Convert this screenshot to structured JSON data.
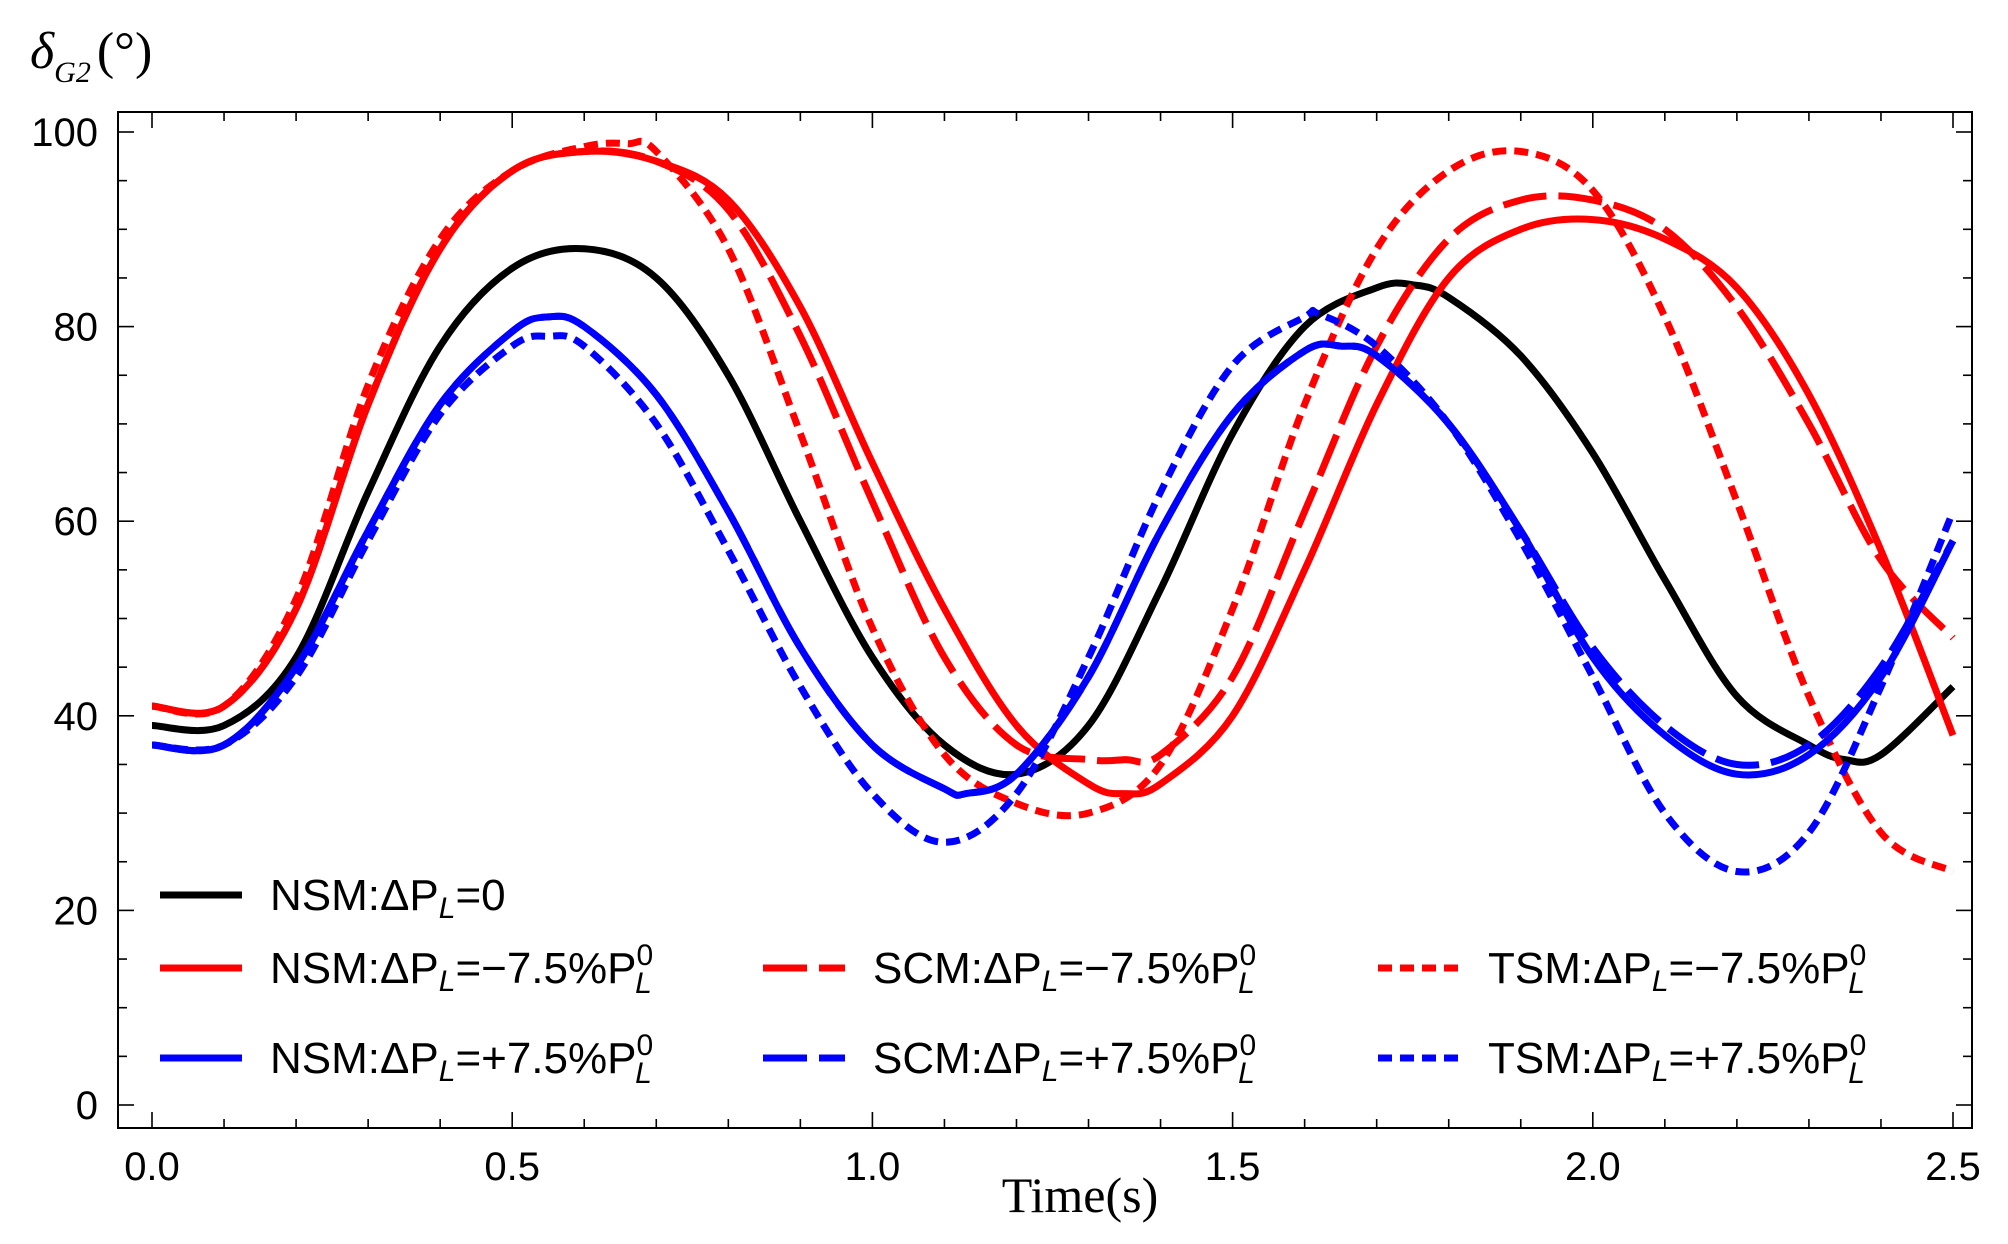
{
  "chart_data": {
    "type": "line",
    "ylabel": "δ",
    "ylabel_sub": "G2",
    "ylabel_unit": "(°)",
    "xlabel": "Time(s)",
    "xlim": [
      0.0,
      2.5
    ],
    "ylim": [
      0,
      100
    ],
    "xticks": [
      0.0,
      0.5,
      1.0,
      1.5,
      2.0,
      2.5
    ],
    "xtick_labels": [
      "0.0",
      "0.5",
      "1.0",
      "1.5",
      "2.0",
      "2.5"
    ],
    "yticks": [
      0,
      20,
      40,
      60,
      80,
      100
    ],
    "ytick_labels": [
      "0",
      "20",
      "40",
      "60",
      "80",
      "100"
    ],
    "grid": false,
    "legend_position": "bottom-left",
    "series": [
      {
        "name": "NSM:ΔP_L=0",
        "prefix": "NSM:ΔP",
        "sub": "L",
        "suffix": "=0",
        "sup": "",
        "color": "#000000",
        "style": "solid",
        "x": [
          0,
          0.1,
          0.2,
          0.3,
          0.4,
          0.5,
          0.6,
          0.7,
          0.8,
          0.9,
          1.0,
          1.1,
          1.2,
          1.3,
          1.4,
          1.5,
          1.6,
          1.7,
          1.75,
          1.8,
          1.9,
          2.0,
          2.1,
          2.2,
          2.3,
          2.35,
          2.4,
          2.5
        ],
        "y": [
          39,
          39,
          46,
          63,
          78,
          86,
          88,
          85,
          75,
          60,
          46,
          37,
          34,
          39,
          53,
          69,
          80,
          84,
          84.3,
          83,
          77,
          67,
          54,
          42,
          37,
          35.5,
          36,
          43
        ]
      },
      {
        "name": "NSM:ΔP_L=−7.5%P_L^0",
        "prefix": "NSM:ΔP",
        "sub": "L",
        "suffix": "=−7.5%P",
        "sup": "0",
        "color": "#ff0000",
        "style": "solid",
        "x": [
          0,
          0.1,
          0.2,
          0.3,
          0.4,
          0.5,
          0.6,
          0.7,
          0.8,
          0.9,
          1.0,
          1.1,
          1.2,
          1.3,
          1.35,
          1.4,
          1.5,
          1.6,
          1.7,
          1.8,
          1.9,
          2.0,
          2.1,
          2.2,
          2.3,
          2.4,
          2.5
        ],
        "y": [
          41,
          41,
          51,
          72,
          88,
          96,
          98,
          97,
          93,
          82,
          66,
          51,
          39,
          33,
          32,
          33,
          40,
          55,
          72,
          85,
          90,
          91,
          89,
          84,
          73,
          57,
          38
        ]
      },
      {
        "name": "SCM:ΔP_L=−7.5%P_L^0",
        "prefix": "SCM:ΔP",
        "sub": "L",
        "suffix": "=−7.5%P",
        "sup": "0",
        "color": "#ff0000",
        "style": "dashed",
        "x": [
          0,
          0.1,
          0.2,
          0.3,
          0.4,
          0.5,
          0.6,
          0.7,
          0.8,
          0.9,
          1.0,
          1.1,
          1.2,
          1.3,
          1.35,
          1.4,
          1.5,
          1.6,
          1.7,
          1.8,
          1.9,
          2.0,
          2.1,
          2.2,
          2.3,
          2.4,
          2.5
        ],
        "y": [
          41,
          41,
          51,
          72,
          88,
          96,
          98,
          97,
          92,
          79,
          62,
          46,
          37,
          35.5,
          35.5,
          36,
          44,
          61,
          78,
          89,
          93,
          93,
          90,
          82,
          70,
          56,
          48
        ]
      },
      {
        "name": "TSM:ΔP_L=−7.5%P_L^0",
        "prefix": "TSM:ΔP",
        "sub": "L",
        "suffix": "=−7.5%P",
        "sup": "0",
        "color": "#ff0000",
        "style": "dotted",
        "x": [
          0,
          0.1,
          0.2,
          0.3,
          0.4,
          0.5,
          0.6,
          0.66,
          0.7,
          0.8,
          0.9,
          1.0,
          1.1,
          1.2,
          1.3,
          1.4,
          1.5,
          1.6,
          1.7,
          1.8,
          1.9,
          2.0,
          2.1,
          2.2,
          2.3,
          2.4,
          2.5
        ],
        "y": [
          41,
          41,
          52,
          74,
          89,
          96,
          98.5,
          98.8,
          98,
          88,
          69,
          49,
          36,
          31,
          30,
          35,
          51,
          72,
          88,
          96,
          98,
          94,
          81,
          62,
          42,
          28,
          24
        ]
      },
      {
        "name": "NSM:ΔP_L=+7.5%P_L^0",
        "prefix": "NSM:ΔP",
        "sub": "L",
        "suffix": "=+7.5%P",
        "sup": "0",
        "color": "#0000ff",
        "style": "solid",
        "x": [
          0,
          0.1,
          0.2,
          0.3,
          0.4,
          0.5,
          0.55,
          0.6,
          0.7,
          0.8,
          0.9,
          1.0,
          1.1,
          1.13,
          1.2,
          1.3,
          1.4,
          1.5,
          1.6,
          1.65,
          1.7,
          1.8,
          1.9,
          2.0,
          2.1,
          2.2,
          2.3,
          2.4,
          2.5
        ],
        "y": [
          37,
          37,
          45,
          59,
          72,
          79.5,
          81,
          80,
          73,
          61,
          47,
          37,
          32.5,
          32,
          34,
          44,
          59,
          71,
          77.5,
          78,
          77,
          70,
          59,
          46,
          38,
          34,
          36,
          44,
          58
        ]
      },
      {
        "name": "SCM:ΔP_L=+7.5%P_L^0",
        "prefix": "SCM:ΔP",
        "sub": "L",
        "suffix": "=+7.5%P",
        "sup": "0",
        "color": "#0000ff",
        "style": "dashed",
        "x": [
          0,
          0.1,
          0.2,
          0.3,
          0.4,
          0.5,
          0.55,
          0.6,
          0.7,
          0.8,
          0.9,
          1.0,
          1.1,
          1.13,
          1.2,
          1.3,
          1.4,
          1.5,
          1.6,
          1.65,
          1.7,
          1.8,
          1.9,
          2.0,
          2.1,
          2.2,
          2.3,
          2.4,
          2.5
        ],
        "y": [
          37,
          37,
          45,
          59,
          72,
          79.5,
          81,
          80,
          73,
          61,
          47,
          37,
          32.5,
          32,
          34,
          44,
          59,
          71,
          77.5,
          78,
          77,
          70,
          59,
          47,
          39,
          35,
          37,
          45,
          58
        ]
      },
      {
        "name": "TSM:ΔP_L=+7.5%P_L^0",
        "prefix": "TSM:ΔP",
        "sub": "L",
        "suffix": "=+7.5%P",
        "sup": "0",
        "color": "#0000ff",
        "style": "dotted",
        "x": [
          0,
          0.1,
          0.2,
          0.3,
          0.4,
          0.5,
          0.55,
          0.6,
          0.7,
          0.8,
          0.9,
          1.0,
          1.1,
          1.2,
          1.3,
          1.4,
          1.5,
          1.6,
          1.62,
          1.7,
          1.8,
          1.9,
          2.0,
          2.1,
          2.2,
          2.3,
          2.4,
          2.5
        ],
        "y": [
          37,
          37,
          44,
          58,
          71,
          78,
          79,
          78,
          70,
          57,
          43,
          32,
          27,
          32,
          46,
          63,
          76,
          81,
          81.3,
          78,
          70,
          58,
          44,
          30,
          24,
          28,
          43,
          61
        ]
      }
    ]
  }
}
